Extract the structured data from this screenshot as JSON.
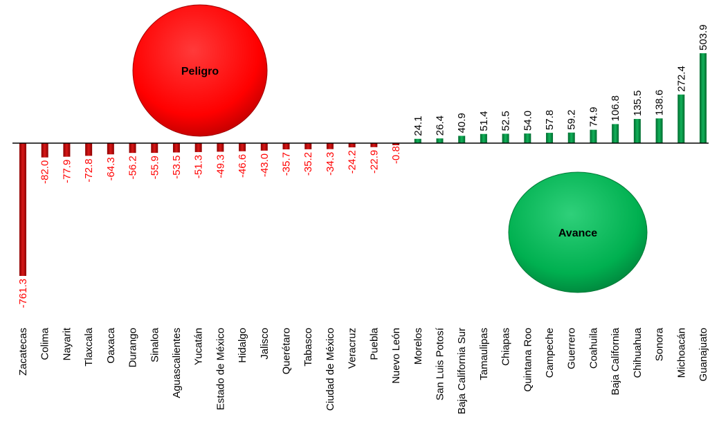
{
  "chart_data": {
    "type": "bar",
    "title": "",
    "xlabel": "",
    "ylabel": "",
    "ylim": [
      -761.3,
      503.9
    ],
    "categories": [
      "Zacatecas",
      "Colima",
      "Nayarit",
      "Tlaxcala",
      "Oaxaca",
      "Durango",
      "Sinaloa",
      "Aguascalientes",
      "Yucatán",
      "Estado de México",
      "Hidalgo",
      "Jalisco",
      "Querétaro",
      "Tabasco",
      "Ciudad de México",
      "Veracruz",
      "Puebla",
      "Nuevo León",
      "Morelos",
      "San Luis Potosí",
      "Baja California Sur",
      "Tamaulipas",
      "Chiapas",
      "Quintana Roo",
      "Campeche",
      "Guerrero",
      "Coahuila",
      "Baja California",
      "Chihuahua",
      "Sonora",
      "Michoacán",
      "Guanajuato"
    ],
    "values": [
      -761.3,
      -82.0,
      -77.9,
      -72.8,
      -64.3,
      -56.2,
      -55.9,
      -53.5,
      -51.3,
      -49.3,
      -46.6,
      -43.0,
      -35.7,
      -35.2,
      -34.3,
      -24.2,
      -22.9,
      -0.8,
      24.1,
      26.4,
      40.9,
      51.4,
      52.5,
      54.0,
      57.8,
      59.2,
      74.9,
      106.8,
      135.5,
      138.6,
      272.4,
      503.9
    ],
    "value_labels": [
      "-761.3",
      "-82.0",
      "-77.9",
      "-72.8",
      "-64.3",
      "-56.2",
      "-55.9",
      "-53.5",
      "-51.3",
      "-49.3",
      "-46.6",
      "-43.0",
      "-35.7",
      "-35.2",
      "-34.3",
      "-24.2",
      "-22.9",
      "-0.8",
      "24.1",
      "26.4",
      "40.9",
      "51.4",
      "52.5",
      "54.0",
      "57.8",
      "59.2",
      "74.9",
      "106.8",
      "135.5",
      "138.6",
      "272.4",
      "503.9"
    ],
    "grid": false,
    "colors": {
      "negative": "#c00000",
      "negative_label": "#ff0000",
      "positive": "#00a050",
      "positive_label": "#000000",
      "axis": "#000000"
    },
    "annotations": [
      {
        "text": "Peligro",
        "color": "#ff0000"
      },
      {
        "text": "Avance",
        "color": "#00b050"
      }
    ]
  }
}
